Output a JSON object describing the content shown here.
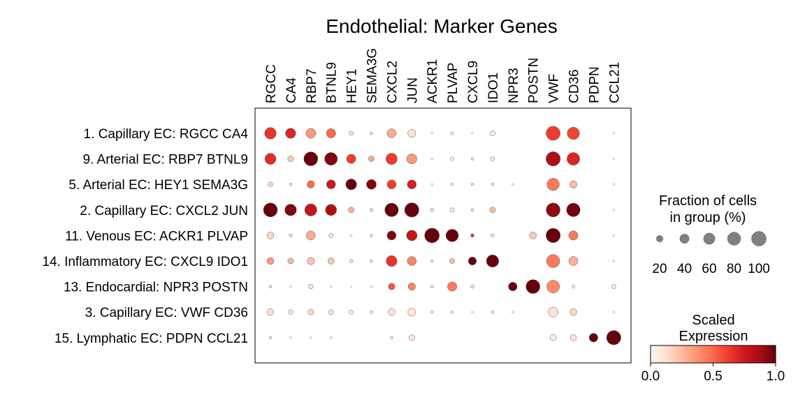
{
  "chart_data": {
    "type": "dotplot",
    "title": "Endothelial: Marker Genes",
    "genes": [
      "RGCC",
      "CA4",
      "RBP7",
      "BTNL9",
      "HEY1",
      "SEMA3G",
      "CXCL2",
      "JUN",
      "ACKR1",
      "PLVAP",
      "CXCL9",
      "IDO1",
      "NPR3",
      "POSTN",
      "VWF",
      "CD36",
      "PDPN",
      "CCL21"
    ],
    "groups": [
      "1. Capillary EC: RGCC CA4",
      "9. Arterial EC: RBP7 BTNL9",
      "5. Arterial EC: HEY1 SEMA3G",
      "2. Capillary EC: CXCL2 JUN",
      "11. Venous EC: ACKR1 PLVAP",
      "14. Inflammatory EC: CXCL9 IDO1",
      "13. Endocardial: NPR3 POSTN",
      "3. Capillary EC: VWF CD36",
      "15. Lymphatic EC: PDPN CCL21"
    ],
    "fraction_pct": [
      [
        62,
        48,
        45,
        40,
        8,
        3,
        38,
        30,
        2,
        4,
        2,
        12,
        0,
        0,
        92,
        70,
        0,
        2
      ],
      [
        58,
        15,
        90,
        75,
        40,
        15,
        60,
        48,
        2,
        6,
        3,
        8,
        0,
        0,
        95,
        75,
        0,
        2
      ],
      [
        10,
        3,
        25,
        38,
        55,
        45,
        38,
        38,
        2,
        3,
        3,
        3,
        2,
        0,
        70,
        25,
        0,
        2
      ],
      [
        90,
        62,
        68,
        58,
        15,
        5,
        85,
        95,
        5,
        8,
        3,
        15,
        0,
        0,
        90,
        85,
        0,
        2
      ],
      [
        22,
        5,
        38,
        8,
        2,
        3,
        38,
        52,
        100,
        72,
        5,
        5,
        0,
        22,
        95,
        40,
        0,
        2
      ],
      [
        22,
        15,
        25,
        18,
        5,
        4,
        55,
        38,
        3,
        12,
        30,
        70,
        0,
        0,
        80,
        38,
        0,
        2
      ],
      [
        3,
        2,
        10,
        2,
        1,
        2,
        20,
        25,
        4,
        40,
        5,
        0,
        35,
        90,
        75,
        5,
        0,
        8
      ],
      [
        20,
        10,
        15,
        12,
        8,
        4,
        22,
        28,
        3,
        3,
        2,
        3,
        2,
        0,
        45,
        22,
        0,
        2
      ],
      [
        3,
        2,
        2,
        2,
        0,
        0,
        3,
        16,
        0,
        0,
        0,
        0,
        0,
        0,
        18,
        18,
        35,
        95
      ]
    ],
    "scaled_expression": [
      [
        0.65,
        0.7,
        0.35,
        0.5,
        0.1,
        0.05,
        0.3,
        0.12,
        0.02,
        0.03,
        0.02,
        0.05,
        0,
        0,
        0.62,
        0.6,
        0,
        0.02
      ],
      [
        0.68,
        0.2,
        1.0,
        0.95,
        0.62,
        0.3,
        0.62,
        0.35,
        0.02,
        0.05,
        0.03,
        0.05,
        0,
        0,
        0.85,
        0.7,
        0,
        0.02
      ],
      [
        0.15,
        0.05,
        0.5,
        0.75,
        1.0,
        0.95,
        0.62,
        0.72,
        0.02,
        0.03,
        0.05,
        0.05,
        0.1,
        0,
        0.45,
        0.25,
        0,
        0.02
      ],
      [
        1.0,
        0.95,
        0.78,
        0.85,
        0.28,
        0.1,
        1.0,
        1.0,
        0.15,
        0.05,
        0.05,
        0.25,
        0,
        0,
        0.92,
        0.98,
        0,
        0.02
      ],
      [
        0.15,
        0.1,
        0.3,
        0.12,
        0.02,
        0.05,
        0.95,
        0.78,
        1.0,
        1.0,
        0.65,
        0.1,
        0,
        0.2,
        1.0,
        0.45,
        0,
        0.05
      ],
      [
        0.35,
        0.25,
        0.22,
        0.2,
        0.06,
        0.06,
        0.65,
        0.42,
        0.03,
        0.25,
        1.0,
        1.0,
        0,
        0,
        0.45,
        0.28,
        0,
        0.02
      ],
      [
        0.05,
        0.02,
        0.1,
        0.03,
        0.02,
        0.02,
        0.55,
        0.42,
        0.1,
        0.45,
        0.1,
        0,
        1.0,
        1.0,
        0.4,
        0.05,
        0,
        0.05
      ],
      [
        0.12,
        0.08,
        0.15,
        0.1,
        0.06,
        0.05,
        0.1,
        0.08,
        0.05,
        0.02,
        0.02,
        0.02,
        0.02,
        0,
        0.1,
        0.15,
        0,
        0.02
      ],
      [
        0.05,
        0.02,
        0.05,
        0.05,
        0,
        0,
        0.05,
        0.1,
        0,
        0,
        0,
        0,
        0,
        0,
        0.05,
        0.1,
        1.0,
        1.0
      ]
    ],
    "size_legend": {
      "title_line1": "Fraction of cells",
      "title_line2": "in group (%)",
      "values": [
        20,
        40,
        60,
        80,
        100
      ],
      "labels": [
        "20",
        "40",
        "60",
        "80",
        "100"
      ],
      "marker_color": "#808080"
    },
    "color_legend": {
      "title_line1": "Scaled",
      "title_line2": "Expression",
      "colormap": "Reds",
      "range": [
        0.0,
        1.0
      ],
      "ticks": [
        0.0,
        0.5,
        1.0
      ],
      "tick_labels": [
        "0.0",
        "0.5",
        "1.0"
      ]
    }
  }
}
